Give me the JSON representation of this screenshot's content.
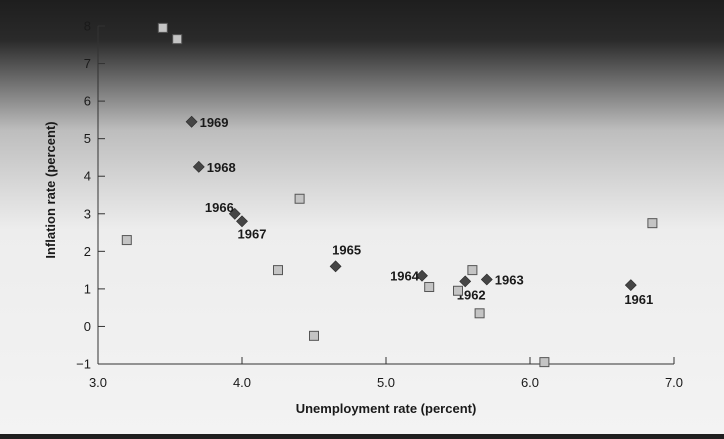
{
  "chart_data": {
    "type": "scatter",
    "title": "",
    "xlabel": "Unemployment rate (percent)",
    "ylabel": "Inflation rate (percent)",
    "xlim": [
      3.0,
      7.0
    ],
    "ylim": [
      -1,
      8
    ],
    "x_ticks": [
      "3.0",
      "4.0",
      "5.0",
      "6.0",
      "7.0"
    ],
    "y_ticks": [
      "−1",
      "0",
      "1",
      "2",
      "3",
      "4",
      "5",
      "6",
      "7",
      "8"
    ],
    "grid": false,
    "series": [
      {
        "marker": "diamond",
        "color": "#454545",
        "points": [
          {
            "label": "1961",
            "x": 6.7,
            "y": 1.1
          },
          {
            "label": "1962",
            "x": 5.55,
            "y": 1.2
          },
          {
            "label": "1963",
            "x": 5.7,
            "y": 1.25
          },
          {
            "label": "1964",
            "x": 5.25,
            "y": 1.35
          },
          {
            "label": "1965",
            "x": 4.65,
            "y": 1.6
          },
          {
            "label": "1966",
            "x": 3.95,
            "y": 3.0
          },
          {
            "label": "1967",
            "x": 4.0,
            "y": 2.8
          },
          {
            "label": "1968",
            "x": 3.7,
            "y": 4.25
          },
          {
            "label": "1969",
            "x": 3.65,
            "y": 5.45
          }
        ]
      },
      {
        "marker": "square",
        "color": "#c4c4c4",
        "points": [
          {
            "x": 3.2,
            "y": 2.3
          },
          {
            "x": 3.45,
            "y": 7.95
          },
          {
            "x": 3.55,
            "y": 7.65
          },
          {
            "x": 4.25,
            "y": 1.5
          },
          {
            "x": 4.4,
            "y": 3.4
          },
          {
            "x": 4.5,
            "y": -0.25
          },
          {
            "x": 5.3,
            "y": 1.05
          },
          {
            "x": 5.5,
            "y": 0.95
          },
          {
            "x": 5.6,
            "y": 1.5
          },
          {
            "x": 5.65,
            "y": 0.35
          },
          {
            "x": 6.1,
            "y": -0.95
          },
          {
            "x": 6.85,
            "y": 2.75
          }
        ]
      }
    ]
  }
}
